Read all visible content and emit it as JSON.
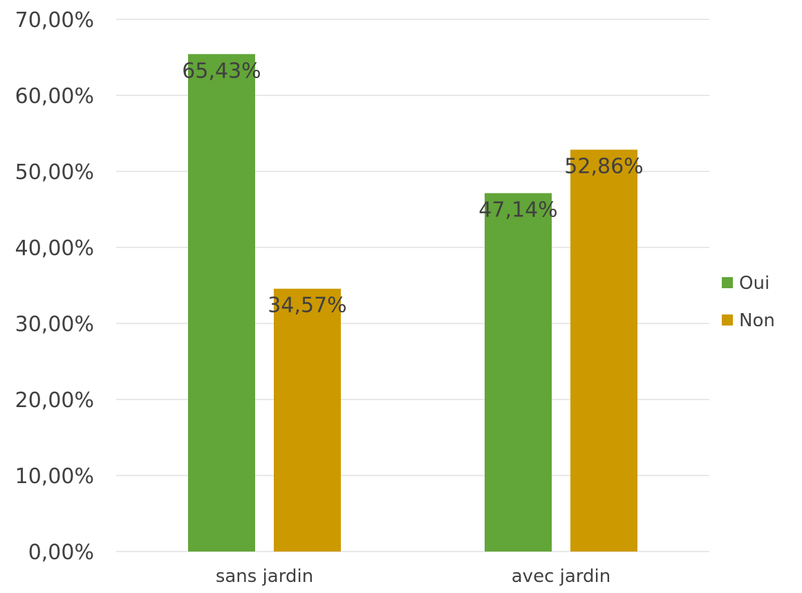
{
  "chart_data": {
    "type": "bar",
    "categories": [
      "sans jardin",
      "avec jardin"
    ],
    "series": [
      {
        "name": "Oui",
        "values": [
          65.43,
          47.14
        ],
        "labels": [
          "65,43%",
          "47,14%"
        ],
        "color": "#62a538"
      },
      {
        "name": "Non",
        "values": [
          34.57,
          52.86
        ],
        "labels": [
          "34,57%",
          "52,86%"
        ],
        "color": "#cc9900"
      }
    ],
    "ylim": [
      0,
      70
    ],
    "y_ticks": [
      0,
      10,
      20,
      30,
      40,
      50,
      60,
      70
    ],
    "y_tick_labels": [
      "0,00%",
      "10,00%",
      "20,00%",
      "30,00%",
      "40,00%",
      "50,00%",
      "60,00%",
      "70,00%"
    ],
    "grid": true,
    "legend_position": "right",
    "title": "",
    "xlabel": "",
    "ylabel": ""
  }
}
